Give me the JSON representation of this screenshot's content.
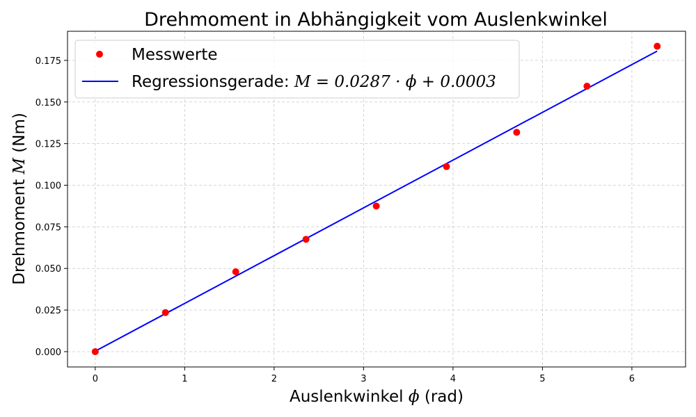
{
  "chart_data": {
    "type": "scatter",
    "title": "Drehmoment in Abhängigkeit vom Auslenkwinkel",
    "xlabel": {
      "prefix": "Auslenkwinkel ",
      "symbol": "ϕ",
      "suffix": " (rad)"
    },
    "ylabel": {
      "prefix": "Drehmoment ",
      "symbol": "M",
      "suffix": " (Nm)"
    },
    "xlim": [
      -0.31,
      6.6
    ],
    "ylim": [
      -0.0092,
      0.1925
    ],
    "xticks": [
      0,
      1,
      2,
      3,
      4,
      5,
      6
    ],
    "yticks": [
      0.0,
      0.025,
      0.05,
      0.075,
      0.1,
      0.125,
      0.15,
      0.175
    ],
    "xtick_labels": [
      "0",
      "1",
      "2",
      "3",
      "4",
      "5",
      "6"
    ],
    "ytick_labels": [
      "0.000",
      "0.025",
      "0.050",
      "0.075",
      "0.100",
      "0.125",
      "0.150",
      "0.175"
    ],
    "grid": true,
    "legend_position": "upper-left",
    "series": [
      {
        "name": "Messwerte",
        "kind": "markers",
        "color": "#ff0000",
        "x": [
          0.0,
          0.785,
          1.571,
          2.356,
          3.142,
          3.927,
          4.712,
          5.498,
          6.283
        ],
        "y": [
          0.0,
          0.0235,
          0.048,
          0.0675,
          0.0875,
          0.1112,
          0.1318,
          0.1595,
          0.1835
        ]
      },
      {
        "name": "Regressionsgerade: M = 0.0287 · ϕ + 0.0003",
        "kind": "line",
        "color": "#0000ff",
        "slope": 0.0287,
        "intercept": 0.0003,
        "x": [
          0.0,
          6.283
        ],
        "y": [
          0.0003,
          0.1806
        ]
      }
    ],
    "legend": {
      "entries": [
        {
          "label": "Messwerte"
        },
        {
          "label_prefix": "Regressionsgerade: ",
          "label_math": "M = 0.0287 · ϕ + 0.0003"
        }
      ]
    }
  }
}
